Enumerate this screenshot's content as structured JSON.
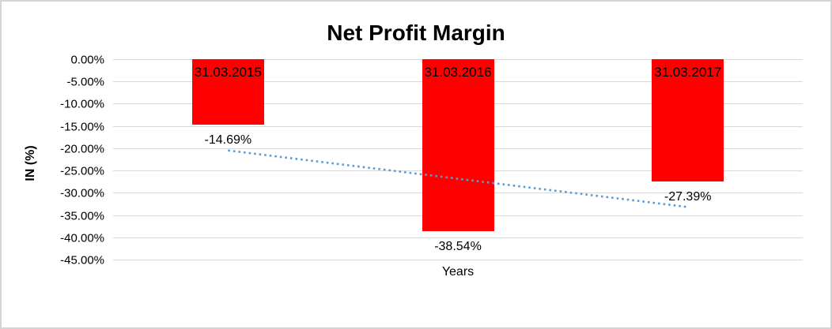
{
  "chart_data": {
    "type": "bar",
    "title": "Net Profit Margin",
    "xlabel": "Years",
    "ylabel": "IN (%)",
    "categories": [
      "31.03.2015",
      "31.03.2016",
      "31.03.2017"
    ],
    "values": [
      -14.69,
      -38.54,
      -27.39
    ],
    "data_labels": [
      "-14.69%",
      "-38.54%",
      "-27.39%"
    ],
    "y_ticks": [
      "0.00%",
      "-5.00%",
      "-10.00%",
      "-15.00%",
      "-20.00%",
      "-25.00%",
      "-30.00%",
      "-35.00%",
      "-40.00%",
      "-45.00%"
    ],
    "ylim": [
      -45,
      0
    ],
    "grid": true,
    "legend": false,
    "bar_color": "#ff0000",
    "gridline_color": "#d9d9d9",
    "trendline": {
      "kind": "linear",
      "style": "dotted",
      "color": "#5b9bd5",
      "start_value": -20.5,
      "end_value": -33.2
    }
  }
}
